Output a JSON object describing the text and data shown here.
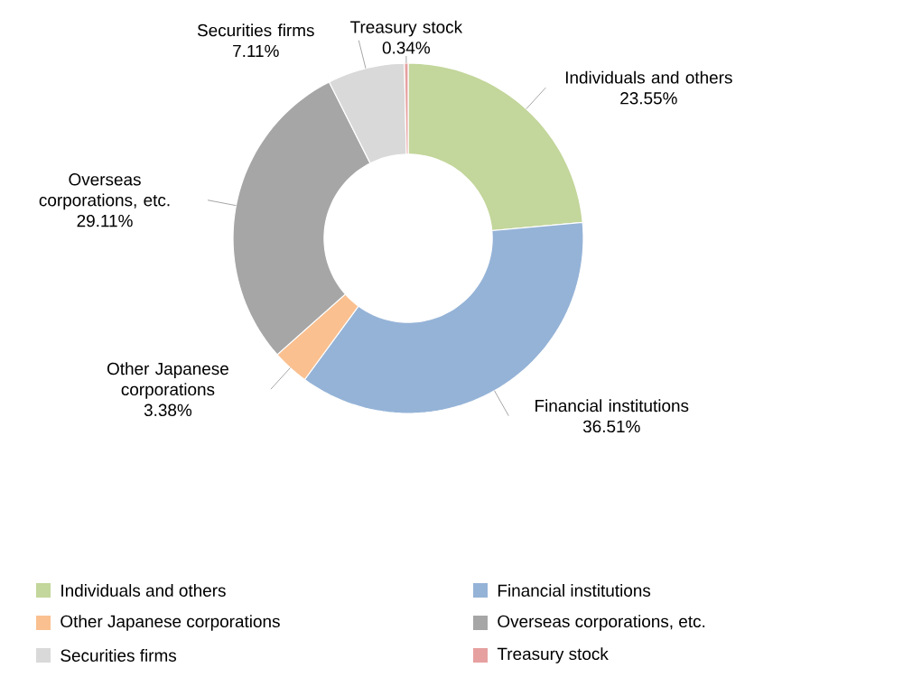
{
  "chart_data": {
    "type": "donut",
    "categories": [
      "Individuals and others",
      "Financial institutions",
      "Other Japanese corporations",
      "Overseas corporations, etc.",
      "Securities firms",
      "Treasury stock"
    ],
    "values": [
      23.55,
      36.51,
      3.38,
      29.11,
      7.11,
      0.34
    ],
    "value_labels": [
      "23.55%",
      "36.51%",
      "3.38%",
      "29.11%",
      "7.11%",
      "0.34%"
    ],
    "colors": [
      "#c3d69b",
      "#95b3d7",
      "#fac090",
      "#a6a6a6",
      "#d9d9d9",
      "#e6a0a0"
    ],
    "legend": "bottom"
  }
}
